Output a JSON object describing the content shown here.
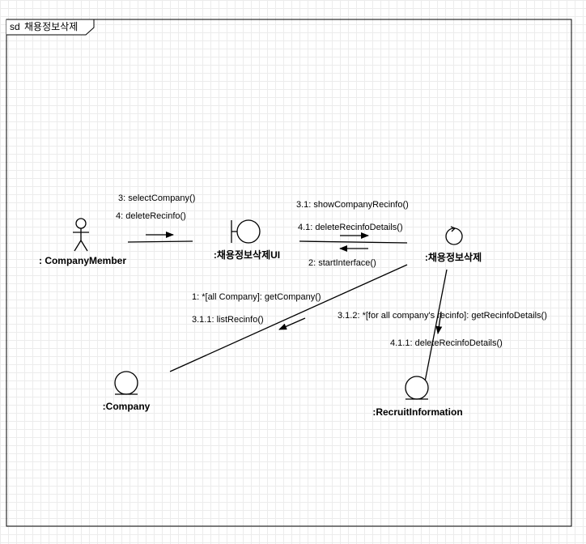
{
  "frame": {
    "keyword": "sd",
    "title": "채용정보삭제"
  },
  "objects": {
    "member": ": CompanyMember",
    "ui": ":채용정보삭제UI",
    "control": ":채용정보삭제",
    "company": ":Company",
    "recruit": ":RecruitInformation"
  },
  "messages": {
    "m3": "3: selectCompany()",
    "m4": "4: deleteRecinfo()",
    "m31": "3.1: showCompanyRecinfo()",
    "m41": "4.1: deleteRecinfoDetails()",
    "m2": "2: startInterface()",
    "m1": "1: *[all Company]: getCompany()",
    "m311": "3.1.1: listRecinfo()",
    "m312": "3.1.2: *[for all company's recinfo]: getRecinfoDetails()",
    "m411": "4.1.1: deleteRecinfoDetails()"
  }
}
